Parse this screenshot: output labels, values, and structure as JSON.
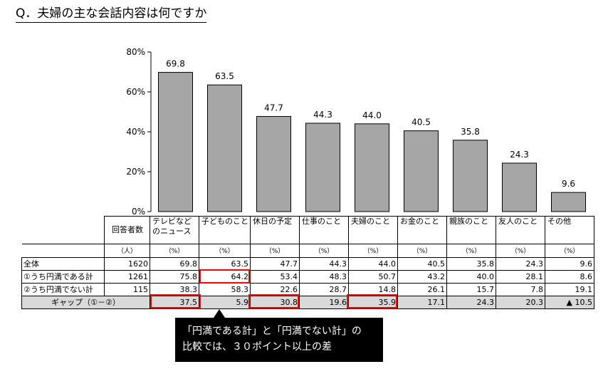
{
  "title": "Q．夫婦の主な会話内容は何ですか",
  "chart_data": {
    "type": "bar",
    "categories": [
      "テレビなどのニュース",
      "子どものこと",
      "休日の予定",
      "仕事のこと",
      "夫婦のこと",
      "お金のこと",
      "親族のこと",
      "友人のこと",
      "その他"
    ],
    "values": [
      69.8,
      63.5,
      47.7,
      44.3,
      44.0,
      40.5,
      35.8,
      24.3,
      9.6
    ],
    "value_labels": [
      "69.8",
      "63.5",
      "47.7",
      "44.3",
      "44.0",
      "40.5",
      "35.8",
      "24.3",
      "9.6"
    ],
    "ylim": [
      0,
      80
    ],
    "yticks": [
      "0%",
      "20%",
      "40%",
      "60%",
      "80%"
    ],
    "ytick_values": [
      0,
      20,
      40,
      60,
      80
    ],
    "bar_color": "#a6a6a6"
  },
  "table": {
    "header_label": "回答者数",
    "unit_label": "（人）",
    "categories": [
      [
        "テレビなど",
        "のニュース"
      ],
      [
        "子どものこと"
      ],
      [
        "休日の予定"
      ],
      [
        "仕事のこと"
      ],
      [
        "夫婦のこと"
      ],
      [
        "お金のこと"
      ],
      [
        "親族のこと"
      ],
      [
        "友人のこと"
      ],
      [
        "その他"
      ]
    ],
    "pct_unit": "（%）",
    "rows": [
      {
        "label": "全体",
        "n": "1620",
        "values": [
          "69.8",
          "63.5",
          "47.7",
          "44.3",
          "44.0",
          "40.5",
          "35.8",
          "24.3",
          "9.6"
        ]
      },
      {
        "label": "①うち円満である計",
        "n": "1261",
        "values": [
          "75.8",
          "64.2",
          "53.4",
          "48.3",
          "50.7",
          "43.2",
          "40.0",
          "28.1",
          "8.6"
        ]
      },
      {
        "label": "②うち円満でない計",
        "n": "115",
        "values": [
          "38.3",
          "58.3",
          "22.6",
          "28.7",
          "14.8",
          "26.1",
          "15.7",
          "7.8",
          "19.1"
        ]
      },
      {
        "label": "ギャップ（①－②）",
        "n": "",
        "values": [
          "37.5",
          "5.9",
          "30.8",
          "19.6",
          "35.9",
          "17.1",
          "24.3",
          "20.3",
          "▲ 10.5"
        ]
      }
    ],
    "highlight_color": "#ff0000"
  },
  "note": {
    "line1": "「円満である計」と「円満でない計」の",
    "line2": "比較では、３０ポイント以上の差"
  }
}
